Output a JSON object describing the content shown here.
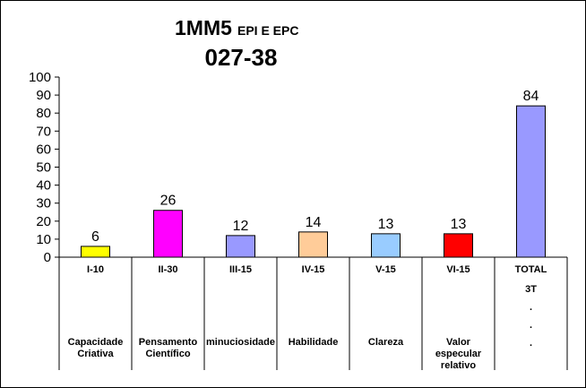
{
  "chart_data": {
    "type": "bar",
    "title_main": "1MM5",
    "title_sub": "EPI E EPC",
    "title_line2": "027-38",
    "categories": [
      "I-10",
      "II-30",
      "III-15",
      "IV-15",
      "V-15",
      "VI-15",
      "TOTAL"
    ],
    "values": [
      6,
      26,
      12,
      14,
      13,
      13,
      84
    ],
    "bar_colors": [
      "#FFFF00",
      "#FF00FF",
      "#9999FF",
      "#FFCC99",
      "#99CCFF",
      "#FF0000",
      "#9999FF"
    ],
    "descriptions": [
      [
        "Capacidade",
        "Criativa"
      ],
      [
        "Pensamento",
        "Científico"
      ],
      [
        "minuciosidade"
      ],
      [
        "Habilidade"
      ],
      [
        "Clareza"
      ],
      [
        "Valor",
        "especular",
        "relativo"
      ],
      [
        "3T",
        ".",
        ".",
        "."
      ]
    ],
    "ylim": [
      0,
      100
    ],
    "yticks": [
      0,
      10,
      20,
      30,
      40,
      50,
      60,
      70,
      80,
      90,
      100
    ],
    "grid": false,
    "xlabel": "",
    "ylabel": ""
  }
}
